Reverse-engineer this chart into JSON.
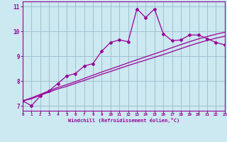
{
  "x": [
    0,
    1,
    2,
    3,
    4,
    5,
    6,
    7,
    8,
    9,
    10,
    11,
    12,
    13,
    14,
    15,
    16,
    17,
    18,
    19,
    20,
    21,
    22,
    23
  ],
  "y_main": [
    7.2,
    7.0,
    7.4,
    7.6,
    7.9,
    8.2,
    8.3,
    8.6,
    8.7,
    9.2,
    9.55,
    9.65,
    9.58,
    10.9,
    10.55,
    10.9,
    9.9,
    9.62,
    9.65,
    9.85,
    9.85,
    9.7,
    9.55,
    9.45
  ],
  "y_linear1": [
    7.2,
    7.28,
    7.42,
    7.55,
    7.68,
    7.78,
    7.9,
    8.02,
    8.14,
    8.27,
    8.38,
    8.5,
    8.62,
    8.73,
    8.84,
    8.95,
    9.06,
    9.18,
    9.3,
    9.42,
    9.53,
    9.63,
    9.72,
    9.8
  ],
  "y_linear2": [
    7.2,
    7.32,
    7.46,
    7.6,
    7.74,
    7.85,
    7.97,
    8.1,
    8.23,
    8.36,
    8.48,
    8.6,
    8.73,
    8.85,
    8.97,
    9.09,
    9.21,
    9.34,
    9.46,
    9.58,
    9.69,
    9.79,
    9.88,
    9.96
  ],
  "line_color": "#990099",
  "bg_color": "#cce8f0",
  "grid_color": "#99bbcc",
  "xlabel": "Windchill (Refroidissement éolien,°C)",
  "xlim": [
    0,
    23
  ],
  "ylim": [
    6.8,
    11.2
  ],
  "yticks": [
    7,
    8,
    9,
    10,
    11
  ],
  "xticks": [
    0,
    1,
    2,
    3,
    4,
    5,
    6,
    7,
    8,
    9,
    10,
    11,
    12,
    13,
    14,
    15,
    16,
    17,
    18,
    19,
    20,
    21,
    22,
    23
  ]
}
